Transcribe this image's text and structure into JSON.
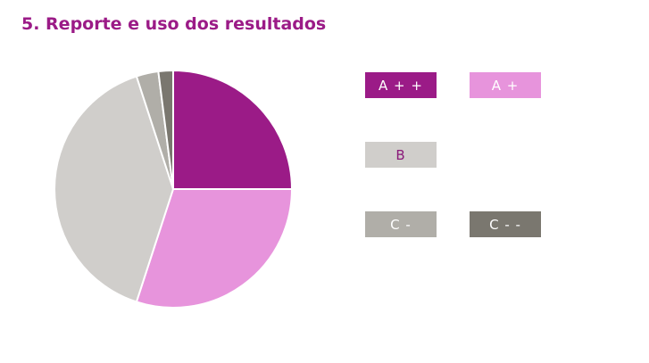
{
  "title": "5. Reporte e uso dos resultados",
  "chart_data": {
    "type": "pie",
    "title": "",
    "start": "top",
    "direction": "clockwise",
    "legend_placement": "right",
    "categories": [
      "A + +",
      "A +",
      "B",
      "C -",
      "C - -"
    ],
    "values": [
      25,
      30,
      40,
      3,
      2
    ],
    "colors": [
      "#9b1b87",
      "#e794dc",
      "#d0cecb",
      "#b0aea8",
      "#7a776f"
    ],
    "label_colors": [
      "#ffffff",
      "#ffffff",
      "#8a1a7a",
      "#ffffff",
      "#ffffff"
    ]
  }
}
